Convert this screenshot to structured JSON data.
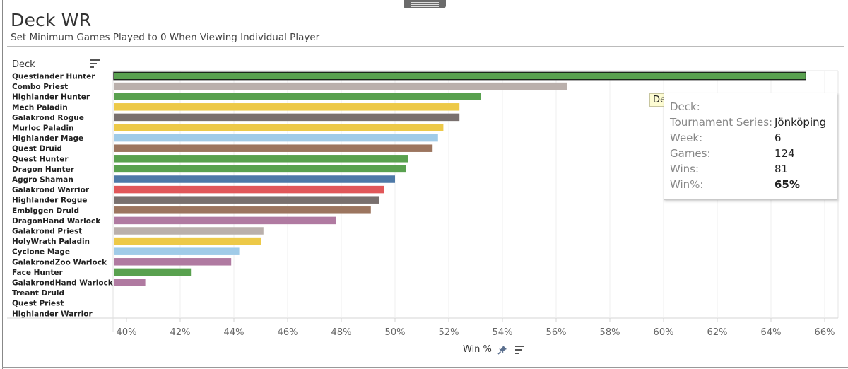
{
  "title": "Deck WR",
  "subtitle": "Set Minimum Games Played to 0 When Viewing Individual Player",
  "deck_header": "Deck",
  "chart_data": {
    "type": "bar",
    "orientation": "horizontal",
    "title": "Deck WR",
    "xlabel": "Win %",
    "ylabel": "Deck",
    "xlim": [
      39.5,
      66.5
    ],
    "xticks": [
      40,
      42,
      44,
      46,
      48,
      50,
      52,
      54,
      56,
      58,
      60,
      62,
      64,
      66
    ],
    "tick_suffix": "%",
    "grid": true,
    "highlighted": "Questlander Hunter",
    "categories": [
      "Questlander Hunter",
      "Combo Priest",
      "Highlander Hunter",
      "Mech Paladin",
      "Galakrond Rogue",
      "Murloc Paladin",
      "Highlander Mage",
      "Quest Druid",
      "Quest Hunter",
      "Dragon Hunter",
      "Aggro Shaman",
      "Galakrond Warrior",
      "Highlander Rogue",
      "Embiggen Druid",
      "DragonHand Warlock",
      "Galakrond Priest",
      "HolyWrath Paladin",
      "Cyclone Mage",
      "GalakrondZoo Warlock",
      "Face Hunter",
      "GalakrondHand Warlock",
      "Treant Druid",
      "Quest Priest",
      "Highlander Warrior"
    ],
    "values": [
      65.3,
      56.4,
      53.2,
      52.4,
      52.4,
      51.8,
      51.6,
      51.4,
      50.5,
      50.4,
      50.0,
      49.6,
      49.4,
      49.1,
      47.8,
      45.1,
      45.0,
      44.2,
      43.9,
      42.4,
      40.7,
      null,
      null,
      null
    ],
    "colors": [
      "#59a14f",
      "#bab0ac",
      "#59a14f",
      "#edc948",
      "#79706e",
      "#edc948",
      "#a0cbe8",
      "#9c755f",
      "#59a14f",
      "#59a14f",
      "#4e79a7",
      "#e15759",
      "#79706e",
      "#9c755f",
      "#b07aa1",
      "#bab0ac",
      "#edc948",
      "#a0cbe8",
      "#b07aa1",
      "#59a14f",
      "#b07aa1",
      "#9c755f",
      "#bab0ac",
      "#e15759"
    ]
  },
  "tooltip": {
    "header": "Deck",
    "rows": [
      {
        "label": "Deck:",
        "value": ""
      },
      {
        "label": "Tournament Series:",
        "value": "Jönköping"
      },
      {
        "label": "Week:",
        "value": "6"
      },
      {
        "label": "Games:",
        "value": "124"
      },
      {
        "label": "Wins:",
        "value": "81"
      },
      {
        "label": "Win%:",
        "value": "65%"
      }
    ]
  },
  "icons": {
    "handle": "drag-handle-icon",
    "sort": "sort-icon",
    "pin": "pin-icon"
  }
}
